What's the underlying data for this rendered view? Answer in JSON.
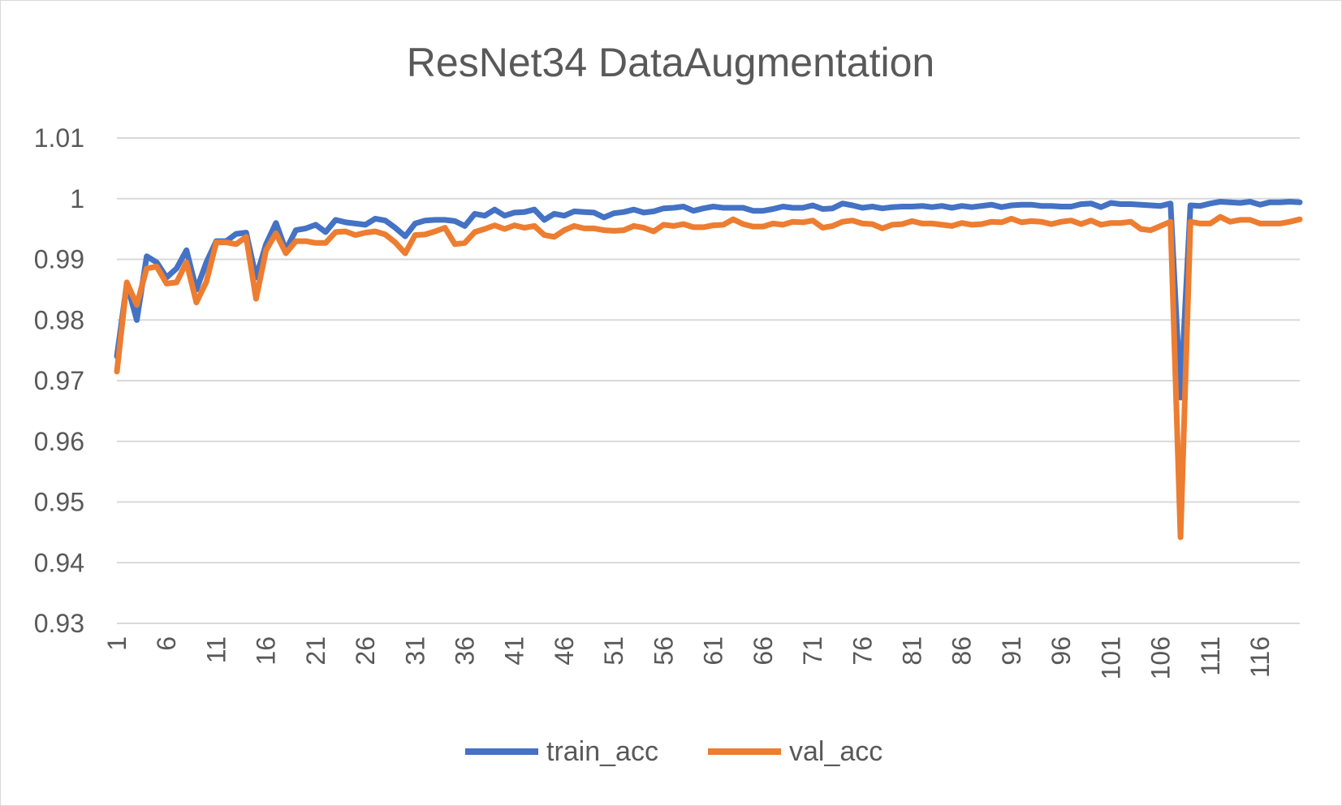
{
  "chart_data": {
    "type": "line",
    "title": "ResNet34 DataAugmentation",
    "xlabel": "",
    "ylabel": "",
    "ylim": [
      0.93,
      1.01
    ],
    "yticks": [
      0.93,
      0.94,
      0.95,
      0.96,
      0.97,
      0.98,
      0.99,
      1.0,
      1.01
    ],
    "ytick_labels": [
      "0.93",
      "0.94",
      "0.95",
      "0.96",
      "0.97",
      "0.98",
      "0.99",
      "1",
      "1.01"
    ],
    "xticks": [
      1,
      6,
      11,
      16,
      21,
      26,
      31,
      36,
      41,
      46,
      51,
      56,
      61,
      66,
      71,
      76,
      81,
      86,
      91,
      96,
      101,
      106,
      111,
      116
    ],
    "xtick_labels": [
      "1",
      "6",
      "11",
      "16",
      "21",
      "26",
      "31",
      "36",
      "41",
      "46",
      "51",
      "56",
      "61",
      "66",
      "71",
      "76",
      "81",
      "86",
      "91",
      "96",
      "101",
      "106",
      "111",
      "116"
    ],
    "x": [
      1,
      2,
      3,
      4,
      5,
      6,
      7,
      8,
      9,
      10,
      11,
      12,
      13,
      14,
      15,
      16,
      17,
      18,
      19,
      20,
      21,
      22,
      23,
      24,
      25,
      26,
      27,
      28,
      29,
      30,
      31,
      32,
      33,
      34,
      35,
      36,
      37,
      38,
      39,
      40,
      41,
      42,
      43,
      44,
      45,
      46,
      47,
      48,
      49,
      50,
      51,
      52,
      53,
      54,
      55,
      56,
      57,
      58,
      59,
      60,
      61,
      62,
      63,
      64,
      65,
      66,
      67,
      68,
      69,
      70,
      71,
      72,
      73,
      74,
      75,
      76,
      77,
      78,
      79,
      80,
      81,
      82,
      83,
      84,
      85,
      86,
      87,
      88,
      89,
      90,
      91,
      92,
      93,
      94,
      95,
      96,
      97,
      98,
      99,
      100,
      101,
      102,
      103,
      104,
      105,
      106,
      107,
      108,
      109,
      110,
      111,
      112,
      113,
      114,
      115,
      116,
      117,
      118,
      119,
      120
    ],
    "series": [
      {
        "name": "train_acc",
        "color": "#4472c4",
        "values": [
          0.974,
          0.986,
          0.98,
          0.9905,
          0.9895,
          0.987,
          0.9885,
          0.9915,
          0.985,
          0.9895,
          0.993,
          0.993,
          0.9942,
          0.9944,
          0.987,
          0.9925,
          0.996,
          0.9915,
          0.9948,
          0.9951,
          0.9957,
          0.9945,
          0.9965,
          0.9961,
          0.9959,
          0.9957,
          0.9967,
          0.9964,
          0.9952,
          0.9938,
          0.9959,
          0.9964,
          0.9965,
          0.9965,
          0.9963,
          0.9955,
          0.9975,
          0.9972,
          0.9982,
          0.9972,
          0.9977,
          0.9978,
          0.9982,
          0.9965,
          0.9975,
          0.9972,
          0.9979,
          0.9978,
          0.9977,
          0.9969,
          0.9976,
          0.9978,
          0.9982,
          0.9977,
          0.9979,
          0.9984,
          0.9985,
          0.9987,
          0.998,
          0.9984,
          0.9987,
          0.9985,
          0.9985,
          0.9985,
          0.998,
          0.998,
          0.9983,
          0.9987,
          0.9985,
          0.9985,
          0.9989,
          0.9983,
          0.9984,
          0.9992,
          0.9989,
          0.9985,
          0.9987,
          0.9984,
          0.9986,
          0.9987,
          0.9987,
          0.9988,
          0.9986,
          0.9988,
          0.9985,
          0.9988,
          0.9986,
          0.9988,
          0.999,
          0.9986,
          0.9989,
          0.999,
          0.999,
          0.9988,
          0.9988,
          0.9987,
          0.9987,
          0.9991,
          0.9992,
          0.9986,
          0.9993,
          0.9991,
          0.9991,
          0.999,
          0.9989,
          0.9988,
          0.9992,
          0.9672,
          0.9989,
          0.9988,
          0.9992,
          0.9995,
          0.9994,
          0.9993,
          0.9995,
          0.999,
          0.9994,
          0.9994,
          0.9995,
          0.9994
        ]
      },
      {
        "name": "val_acc",
        "color": "#ed7d31",
        "values": [
          0.9715,
          0.9862,
          0.9825,
          0.9885,
          0.9888,
          0.986,
          0.9862,
          0.9895,
          0.9829,
          0.9863,
          0.9928,
          0.9928,
          0.9925,
          0.9937,
          0.9835,
          0.9915,
          0.9943,
          0.991,
          0.993,
          0.993,
          0.9927,
          0.9927,
          0.9945,
          0.9946,
          0.994,
          0.9944,
          0.9946,
          0.9941,
          0.9928,
          0.991,
          0.994,
          0.9941,
          0.9946,
          0.9952,
          0.9925,
          0.9927,
          0.9945,
          0.995,
          0.9956,
          0.995,
          0.9956,
          0.9952,
          0.9955,
          0.994,
          0.9937,
          0.9948,
          0.9955,
          0.9951,
          0.9951,
          0.9948,
          0.9947,
          0.9948,
          0.9955,
          0.9952,
          0.9946,
          0.9957,
          0.9955,
          0.9958,
          0.9953,
          0.9953,
          0.9956,
          0.9957,
          0.9966,
          0.9958,
          0.9954,
          0.9954,
          0.9959,
          0.9957,
          0.9962,
          0.9961,
          0.9964,
          0.9952,
          0.9955,
          0.9962,
          0.9964,
          0.9959,
          0.9958,
          0.9951,
          0.9957,
          0.9958,
          0.9963,
          0.9959,
          0.9959,
          0.9957,
          0.9955,
          0.996,
          0.9957,
          0.9958,
          0.9962,
          0.9961,
          0.9967,
          0.9961,
          0.9963,
          0.9962,
          0.9958,
          0.9962,
          0.9964,
          0.9958,
          0.9964,
          0.9957,
          0.996,
          0.996,
          0.9962,
          0.995,
          0.9948,
          0.9955,
          0.9962,
          0.9442,
          0.9962,
          0.9959,
          0.9959,
          0.997,
          0.9962,
          0.9965,
          0.9965,
          0.9959,
          0.9959,
          0.9959,
          0.9962,
          0.9966
        ]
      }
    ],
    "grid": true,
    "legend_position": "bottom"
  }
}
